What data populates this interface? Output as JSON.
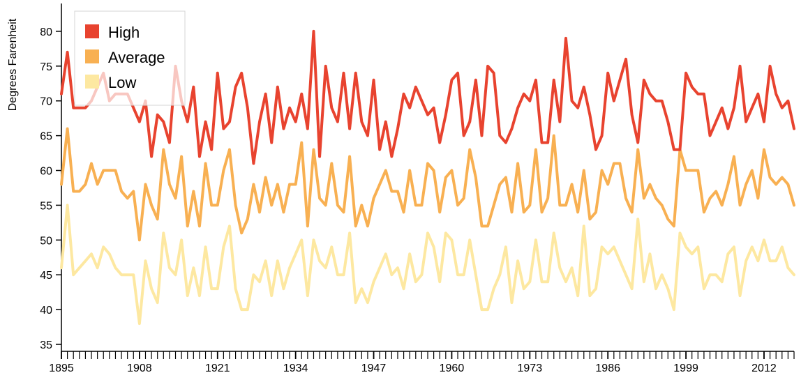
{
  "chart_data": {
    "type": "line",
    "title": "",
    "xlabel": "",
    "ylabel": "Degrees Farenheit",
    "xlim": [
      1895,
      2017
    ],
    "ylim": [
      34,
      84
    ],
    "x_ticks": [
      1895,
      1908,
      1921,
      1934,
      1947,
      1960,
      1973,
      1986,
      1999,
      2012
    ],
    "x_tick_labels": [
      "1895",
      "1908",
      "1921",
      "1934",
      "1947",
      "1960",
      "1973",
      "1986",
      "1999",
      "2012"
    ],
    "y_ticks": [
      35,
      40,
      45,
      50,
      55,
      60,
      65,
      70,
      75,
      80
    ],
    "y_tick_labels": [
      "35",
      "40",
      "45",
      "50",
      "55",
      "60",
      "65",
      "70",
      "75",
      "80"
    ],
    "grid": false,
    "legend_position": "top-left",
    "legend": [
      {
        "label": "High",
        "color": "#e8432f"
      },
      {
        "label": "Average",
        "color": "#f8b052"
      },
      {
        "label": "Low",
        "color": "#fde8a1"
      }
    ],
    "x": [
      1895,
      1896,
      1897,
      1898,
      1899,
      1900,
      1901,
      1902,
      1903,
      1904,
      1905,
      1906,
      1907,
      1908,
      1909,
      1910,
      1911,
      1912,
      1913,
      1914,
      1915,
      1916,
      1917,
      1918,
      1919,
      1920,
      1921,
      1922,
      1923,
      1924,
      1925,
      1926,
      1927,
      1928,
      1929,
      1930,
      1931,
      1932,
      1933,
      1934,
      1935,
      1936,
      1937,
      1938,
      1939,
      1940,
      1941,
      1942,
      1943,
      1944,
      1945,
      1946,
      1947,
      1948,
      1949,
      1950,
      1951,
      1952,
      1953,
      1954,
      1955,
      1956,
      1957,
      1958,
      1959,
      1960,
      1961,
      1962,
      1963,
      1964,
      1965,
      1966,
      1967,
      1968,
      1969,
      1970,
      1971,
      1972,
      1973,
      1974,
      1975,
      1976,
      1977,
      1978,
      1979,
      1980,
      1981,
      1982,
      1983,
      1984,
      1985,
      1986,
      1987,
      1988,
      1989,
      1990,
      1991,
      1992,
      1993,
      1994,
      1995,
      1996,
      1997,
      1998,
      1999,
      2000,
      2001,
      2002,
      2003,
      2004,
      2005,
      2006,
      2007,
      2008,
      2009,
      2010,
      2011,
      2012,
      2013,
      2014,
      2015,
      2016,
      2017
    ],
    "series": [
      {
        "name": "High",
        "color": "#e8432f",
        "values": [
          71,
          77,
          69,
          69,
          69,
          70,
          72,
          74,
          70,
          71,
          71,
          71,
          69,
          67,
          70,
          62,
          68,
          67,
          64,
          75,
          70,
          67,
          72,
          62,
          67,
          63,
          74,
          66,
          67,
          72,
          74,
          69,
          61,
          67,
          71,
          64,
          72,
          66,
          69,
          67,
          71,
          66,
          80,
          62,
          75,
          69,
          67,
          74,
          66,
          74,
          67,
          65,
          73,
          63,
          67,
          62,
          66,
          71,
          69,
          72,
          70,
          68,
          69,
          64,
          68,
          73,
          74,
          65,
          67,
          73,
          65,
          75,
          74,
          65,
          64,
          66,
          69,
          71,
          70,
          73,
          64,
          64,
          73,
          67,
          79,
          70,
          69,
          72,
          68,
          63,
          65,
          74,
          70,
          73,
          76,
          68,
          64,
          73,
          71,
          70,
          70,
          67,
          63,
          63,
          74,
          72,
          71,
          71,
          65,
          67,
          69,
          66,
          69,
          75,
          67,
          69,
          71,
          67,
          75,
          71,
          69,
          70,
          66
        ]
      },
      {
        "name": "Average",
        "color": "#f8b052",
        "values": [
          58,
          66,
          57,
          57,
          58,
          61,
          58,
          60,
          60,
          60,
          57,
          56,
          57,
          50,
          58,
          55,
          53,
          63,
          58,
          56,
          62,
          52,
          57,
          52,
          61,
          55,
          55,
          60,
          63,
          55,
          51,
          53,
          58,
          54,
          59,
          55,
          58,
          54,
          58,
          58,
          64,
          52,
          63,
          56,
          55,
          61,
          55,
          54,
          62,
          52,
          55,
          52,
          56,
          58,
          60,
          57,
          57,
          54,
          60,
          55,
          55,
          61,
          60,
          54,
          59,
          60,
          55,
          56,
          63,
          59,
          52,
          52,
          55,
          58,
          59,
          54,
          61,
          54,
          55,
          63,
          54,
          56,
          65,
          55,
          55,
          58,
          54,
          60,
          53,
          54,
          60,
          58,
          61,
          61,
          56,
          54,
          63,
          56,
          58,
          56,
          55,
          53,
          52,
          63,
          60,
          60,
          60,
          54,
          56,
          57,
          55,
          58,
          62,
          55,
          58,
          60,
          56,
          63,
          59,
          58,
          59,
          58,
          55
        ]
      },
      {
        "name": "Low",
        "color": "#fde8a1",
        "values": [
          46,
          55,
          45,
          46,
          47,
          48,
          46,
          49,
          48,
          46,
          45,
          45,
          45,
          38,
          47,
          43,
          41,
          51,
          46,
          45,
          50,
          42,
          46,
          42,
          49,
          43,
          43,
          49,
          52,
          43,
          40,
          40,
          45,
          44,
          47,
          42,
          47,
          43,
          46,
          48,
          50,
          42,
          50,
          47,
          46,
          49,
          45,
          45,
          51,
          41,
          43,
          41,
          44,
          46,
          48,
          45,
          46,
          43,
          48,
          44,
          45,
          51,
          49,
          44,
          51,
          50,
          45,
          45,
          50,
          45,
          40,
          40,
          43,
          45,
          49,
          41,
          47,
          43,
          44,
          50,
          44,
          44,
          51,
          46,
          44,
          46,
          42,
          52,
          42,
          43,
          49,
          48,
          49,
          47,
          45,
          43,
          53,
          44,
          48,
          43,
          45,
          43,
          40,
          51,
          49,
          48,
          49,
          43,
          45,
          45,
          44,
          48,
          49,
          42,
          47,
          49,
          47,
          50,
          47,
          47,
          49,
          46,
          45
        ]
      }
    ]
  }
}
